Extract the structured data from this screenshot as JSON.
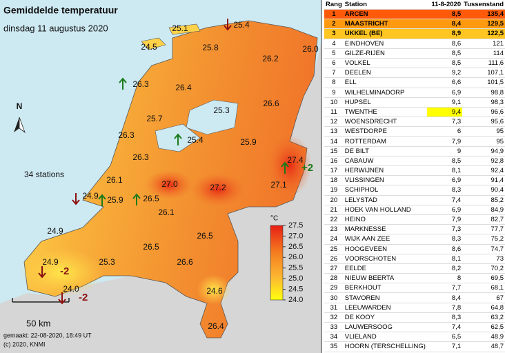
{
  "map": {
    "title": "Gemiddelde temperatuur",
    "subtitle": "dinsdag 11 augustus 2020",
    "stations": "34 stations",
    "north": "N",
    "scale": "50 km",
    "made": "gemaakt: 22-08-2020, 18:49 UT",
    "copyright": "(c) 2020, KNMI",
    "legend": {
      "unit": "°C",
      "labels": [
        "27.5",
        "27.0",
        "26.5",
        "26.0",
        "25.5",
        "25.0",
        "24.5",
        "24.0"
      ]
    },
    "labels": [
      "25.1",
      "25.4",
      "24.5",
      "25.8",
      "26.0",
      "26.2",
      "26.3",
      "26.4",
      "25.3",
      "26.6",
      "25.7",
      "26.3",
      "25.4",
      "25.9",
      "26.3",
      "27.4",
      "26.1",
      "27.0",
      "27.2",
      "27.1",
      "24.9",
      "25.9",
      "26.5",
      "26.1",
      "26.5",
      "24.9",
      "26.5",
      "25.3",
      "26.6",
      "24.9",
      "24.0",
      "24.6",
      "26.4"
    ],
    "changes": [
      "+2",
      "-2",
      "-2"
    ]
  },
  "table": {
    "header": [
      "Rang",
      "Station",
      "11-8-2020",
      "Tussenstand"
    ],
    "rows": [
      [
        "1",
        "ARCEN",
        "8,5",
        "135,4"
      ],
      [
        "2",
        "MAASTRICHT",
        "8,4",
        "129,5"
      ],
      [
        "3",
        "UKKEL (BE)",
        "8,9",
        "122,5"
      ],
      [
        "4",
        "EINDHOVEN",
        "8,6",
        "121"
      ],
      [
        "5",
        "GILZE-RIJEN",
        "8,5",
        "114"
      ],
      [
        "6",
        "VOLKEL",
        "8,5",
        "111,6"
      ],
      [
        "7",
        "DEELEN",
        "9,2",
        "107,1"
      ],
      [
        "8",
        "ELL",
        "6,6",
        "101,5"
      ],
      [
        "9",
        "WILHELMINADORP",
        "6,9",
        "98,8"
      ],
      [
        "10",
        "HUPSEL",
        "9,1",
        "98,3"
      ],
      [
        "11",
        "TWENTHE",
        "9,4",
        "96,6"
      ],
      [
        "12",
        "WOENSDRECHT",
        "7,3",
        "95,6"
      ],
      [
        "13",
        "WESTDORPE",
        "6",
        "95"
      ],
      [
        "14",
        "ROTTERDAM",
        "7,9",
        "95"
      ],
      [
        "15",
        "DE BILT",
        "9",
        "94,9"
      ],
      [
        "16",
        "CABAUW",
        "8,5",
        "92,8"
      ],
      [
        "17",
        "HERWIJNEN",
        "8,1",
        "92,4"
      ],
      [
        "18",
        "VLISSINGEN",
        "6,9",
        "91,4"
      ],
      [
        "19",
        "SCHIPHOL",
        "8,3",
        "90,4"
      ],
      [
        "20",
        "LELYSTAD",
        "7,4",
        "85,2"
      ],
      [
        "21",
        "HOEK VAN HOLLAND",
        "6,9",
        "84,9"
      ],
      [
        "22",
        "HEINO",
        "7,9",
        "82,7"
      ],
      [
        "23",
        "MARKNESSE",
        "7,3",
        "77,7"
      ],
      [
        "24",
        "WIJK AAN ZEE",
        "8,3",
        "75,2"
      ],
      [
        "25",
        "HOOGEVEEN",
        "8,6",
        "74,7"
      ],
      [
        "26",
        "VOORSCHOTEN",
        "8,1",
        "73"
      ],
      [
        "27",
        "EELDE",
        "8,2",
        "70,2"
      ],
      [
        "28",
        "NIEUW BEERTA",
        "8",
        "69,5"
      ],
      [
        "29",
        "BERKHOUT",
        "7,7",
        "68,1"
      ],
      [
        "30",
        "STAVOREN",
        "8,4",
        "67"
      ],
      [
        "31",
        "LEEUWARDEN",
        "7,8",
        "64,8"
      ],
      [
        "32",
        "DE KOOY",
        "8,3",
        "63,2"
      ],
      [
        "33",
        "LAUWERSOOG",
        "7,4",
        "62,5"
      ],
      [
        "34",
        "VLIELAND",
        "6,5",
        "48,9"
      ],
      [
        "35",
        "HOORN (TERSCHELLING)",
        "7,1",
        "48,7"
      ]
    ]
  }
}
